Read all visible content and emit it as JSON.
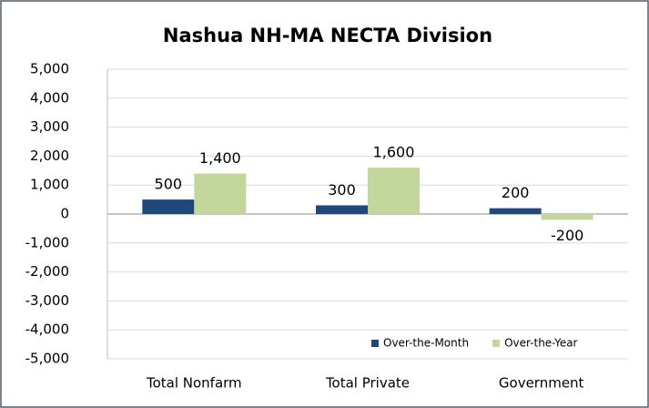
{
  "chart_data": {
    "type": "bar",
    "title": "Nashua NH-MA NECTA Division",
    "categories": [
      "Total Nonfarm",
      "Total Private",
      "Government"
    ],
    "series": [
      {
        "name": "Over-the-Month",
        "color": "#1f497d",
        "values": [
          500,
          300,
          200
        ]
      },
      {
        "name": "Over-the-Year",
        "color": "#c3d69b",
        "values": [
          1400,
          1600,
          -200
        ],
        "value_labels": [
          "1,400",
          "1,600",
          "-200"
        ]
      }
    ],
    "ylim": [
      -5000,
      5000
    ],
    "yticks": [
      {
        "value": -5000,
        "label": "-5,000"
      },
      {
        "value": -4000,
        "label": "-4,000"
      },
      {
        "value": -3000,
        "label": "-3,000"
      },
      {
        "value": -2000,
        "label": "-2,000"
      },
      {
        "value": -1000,
        "label": "-1,000"
      },
      0,
      {
        "value": 1000,
        "label": "1,000"
      },
      {
        "value": 2000,
        "label": "2,000"
      },
      {
        "value": 3000,
        "label": "3,000"
      },
      {
        "value": 4000,
        "label": "4,000"
      },
      {
        "value": 5000,
        "label": "5,000"
      }
    ],
    "grid": true,
    "legend": "lower right"
  }
}
